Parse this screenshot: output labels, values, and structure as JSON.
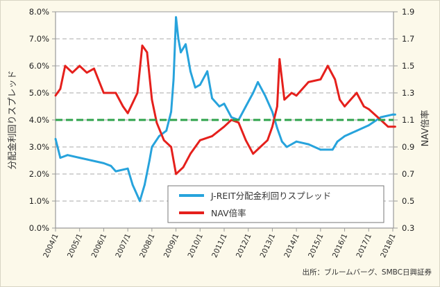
{
  "chart_data": {
    "type": "line",
    "ylabel_left": "分配金利回りスプレッド",
    "ylabel_right": "NAV倍率",
    "left_axis": {
      "range": [
        0,
        8
      ],
      "ticks": [
        "0.0%",
        "1.0%",
        "2.0%",
        "3.0%",
        "4.0%",
        "5.0%",
        "6.0%",
        "7.0%",
        "8.0%"
      ]
    },
    "right_axis": {
      "range": [
        0.3,
        1.9
      ],
      "ticks": [
        "0.3",
        "0.5",
        "0.7",
        "0.9",
        "1.1",
        "1.3",
        "1.5",
        "1.7",
        "1.9"
      ]
    },
    "x_ticks": [
      "2004/1",
      "2005/1",
      "2006/1",
      "2007/1",
      "2008/1",
      "2009/1",
      "2010/1",
      "2011/1",
      "2012/1",
      "2013/1",
      "2014/1",
      "2015/1",
      "2016/1",
      "2017/1",
      "2018/1"
    ],
    "x_range": [
      2004.0,
      2018.0
    ],
    "grid": "horizontal dashed",
    "reference_line": {
      "axis": "left",
      "value": 4.0,
      "color": "#2ea34b"
    },
    "legend": "bottom-right",
    "series": [
      {
        "name": "J-REIT分配金利回りスプレッド",
        "axis": "left",
        "color": "#27a3dc",
        "x": [
          2004.0,
          2004.2,
          2004.5,
          2005.0,
          2005.5,
          2006.0,
          2006.3,
          2006.5,
          2007.0,
          2007.2,
          2007.3,
          2007.5,
          2007.7,
          2007.9,
          2008.0,
          2008.3,
          2008.6,
          2008.8,
          2008.9,
          2009.0,
          2009.1,
          2009.2,
          2009.4,
          2009.6,
          2009.8,
          2010.0,
          2010.3,
          2010.5,
          2010.8,
          2011.0,
          2011.3,
          2011.6,
          2011.9,
          2012.2,
          2012.4,
          2012.7,
          2013.0,
          2013.2,
          2013.4,
          2013.6,
          2014.0,
          2014.5,
          2015.0,
          2015.5,
          2015.7,
          2016.0,
          2016.5,
          2017.0,
          2017.5,
          2018.0,
          2018.1
        ],
        "values": [
          3.3,
          2.6,
          2.7,
          2.6,
          2.5,
          2.4,
          2.3,
          2.1,
          2.2,
          1.6,
          1.4,
          1.0,
          1.6,
          2.5,
          3.0,
          3.4,
          3.6,
          4.3,
          5.5,
          7.8,
          7.0,
          6.5,
          6.8,
          5.8,
          5.2,
          5.3,
          5.8,
          4.8,
          4.5,
          4.6,
          4.1,
          4.0,
          4.5,
          5.0,
          5.4,
          4.9,
          4.3,
          3.7,
          3.2,
          3.0,
          3.2,
          3.1,
          2.9,
          2.9,
          3.2,
          3.4,
          3.6,
          3.8,
          4.1,
          4.2,
          4.2
        ]
      },
      {
        "name": "NAV倍率",
        "axis": "right",
        "color": "#e5201c",
        "x": [
          2004.0,
          2004.2,
          2004.4,
          2004.7,
          2005.0,
          2005.3,
          2005.6,
          2006.0,
          2006.5,
          2006.8,
          2007.0,
          2007.4,
          2007.6,
          2007.8,
          2008.0,
          2008.2,
          2008.5,
          2008.8,
          2009.0,
          2009.3,
          2009.6,
          2010.0,
          2010.5,
          2011.0,
          2011.3,
          2011.6,
          2011.9,
          2012.2,
          2012.5,
          2012.8,
          2013.0,
          2013.2,
          2013.3,
          2013.5,
          2013.8,
          2014.0,
          2014.5,
          2015.0,
          2015.3,
          2015.6,
          2015.8,
          2016.0,
          2016.5,
          2016.8,
          2017.0,
          2017.5,
          2017.8,
          2018.0,
          2018.1
        ],
        "values": [
          1.28,
          1.33,
          1.5,
          1.45,
          1.5,
          1.45,
          1.48,
          1.3,
          1.3,
          1.2,
          1.15,
          1.3,
          1.65,
          1.6,
          1.25,
          1.08,
          0.95,
          0.9,
          0.7,
          0.75,
          0.85,
          0.95,
          0.98,
          1.05,
          1.1,
          1.08,
          0.95,
          0.85,
          0.9,
          0.95,
          1.05,
          1.2,
          1.55,
          1.25,
          1.3,
          1.28,
          1.38,
          1.4,
          1.5,
          1.4,
          1.25,
          1.2,
          1.3,
          1.2,
          1.18,
          1.1,
          1.05,
          1.05,
          1.05
        ]
      }
    ],
    "source_note": "出所：ブルームバーグ、SMBC日興証券"
  }
}
